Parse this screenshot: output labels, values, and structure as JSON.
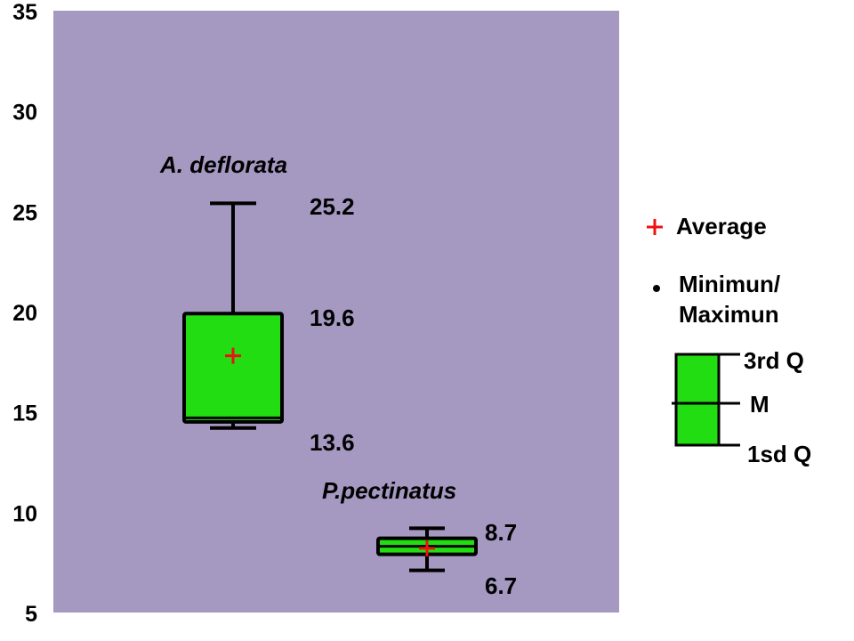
{
  "chart_data": {
    "type": "boxplot",
    "ylim": [
      5,
      35
    ],
    "yticks": [
      5,
      10,
      15,
      20,
      25,
      30,
      35
    ],
    "background_color": "#a599c2",
    "box_color": "#22dd11",
    "mean_color": "#ee1111",
    "series": [
      {
        "name": "A. deflorata",
        "min": 14.2,
        "q1": 14.5,
        "median": 14.7,
        "q3": 19.9,
        "max": 25.4,
        "mean": 17.8,
        "labels": [
          "25.2",
          "19.6",
          "13.6"
        ]
      },
      {
        "name": "P.pectinatus",
        "min": 7.1,
        "q1": 7.9,
        "median": 8.3,
        "q3": 8.7,
        "max": 9.2,
        "mean": 8.2,
        "labels": [
          "8.7",
          "6.7"
        ]
      }
    ],
    "legend": {
      "average": "Average",
      "minmax_line1": "Minimun/",
      "minmax_line2": "Maximun",
      "q3": "3rd Q",
      "median": "M",
      "q1": "1sd Q"
    }
  }
}
